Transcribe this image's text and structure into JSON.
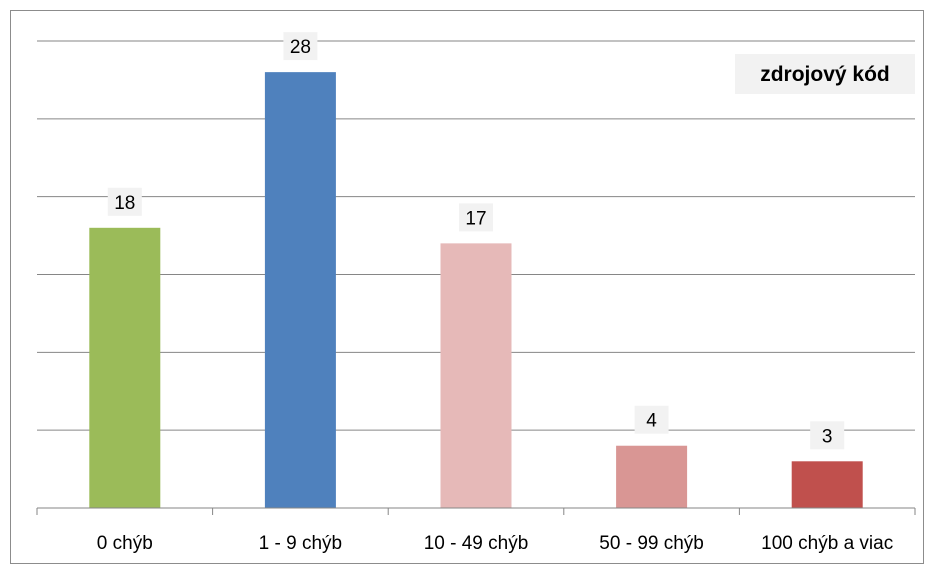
{
  "chart_data": {
    "type": "bar",
    "title": "zdrojový kód",
    "categories": [
      "0 chýb",
      "1 - 9 chýb",
      "10 - 49 chýb",
      "50 - 99 chýb",
      "100 chýb a viac"
    ],
    "values": [
      18,
      28,
      17,
      4,
      3
    ],
    "colors": [
      "#9bbb59",
      "#4f81bd",
      "#e6b9b8",
      "#d99694",
      "#c0504d"
    ],
    "ylim": [
      0,
      30
    ],
    "grid": true,
    "legend": "none"
  }
}
